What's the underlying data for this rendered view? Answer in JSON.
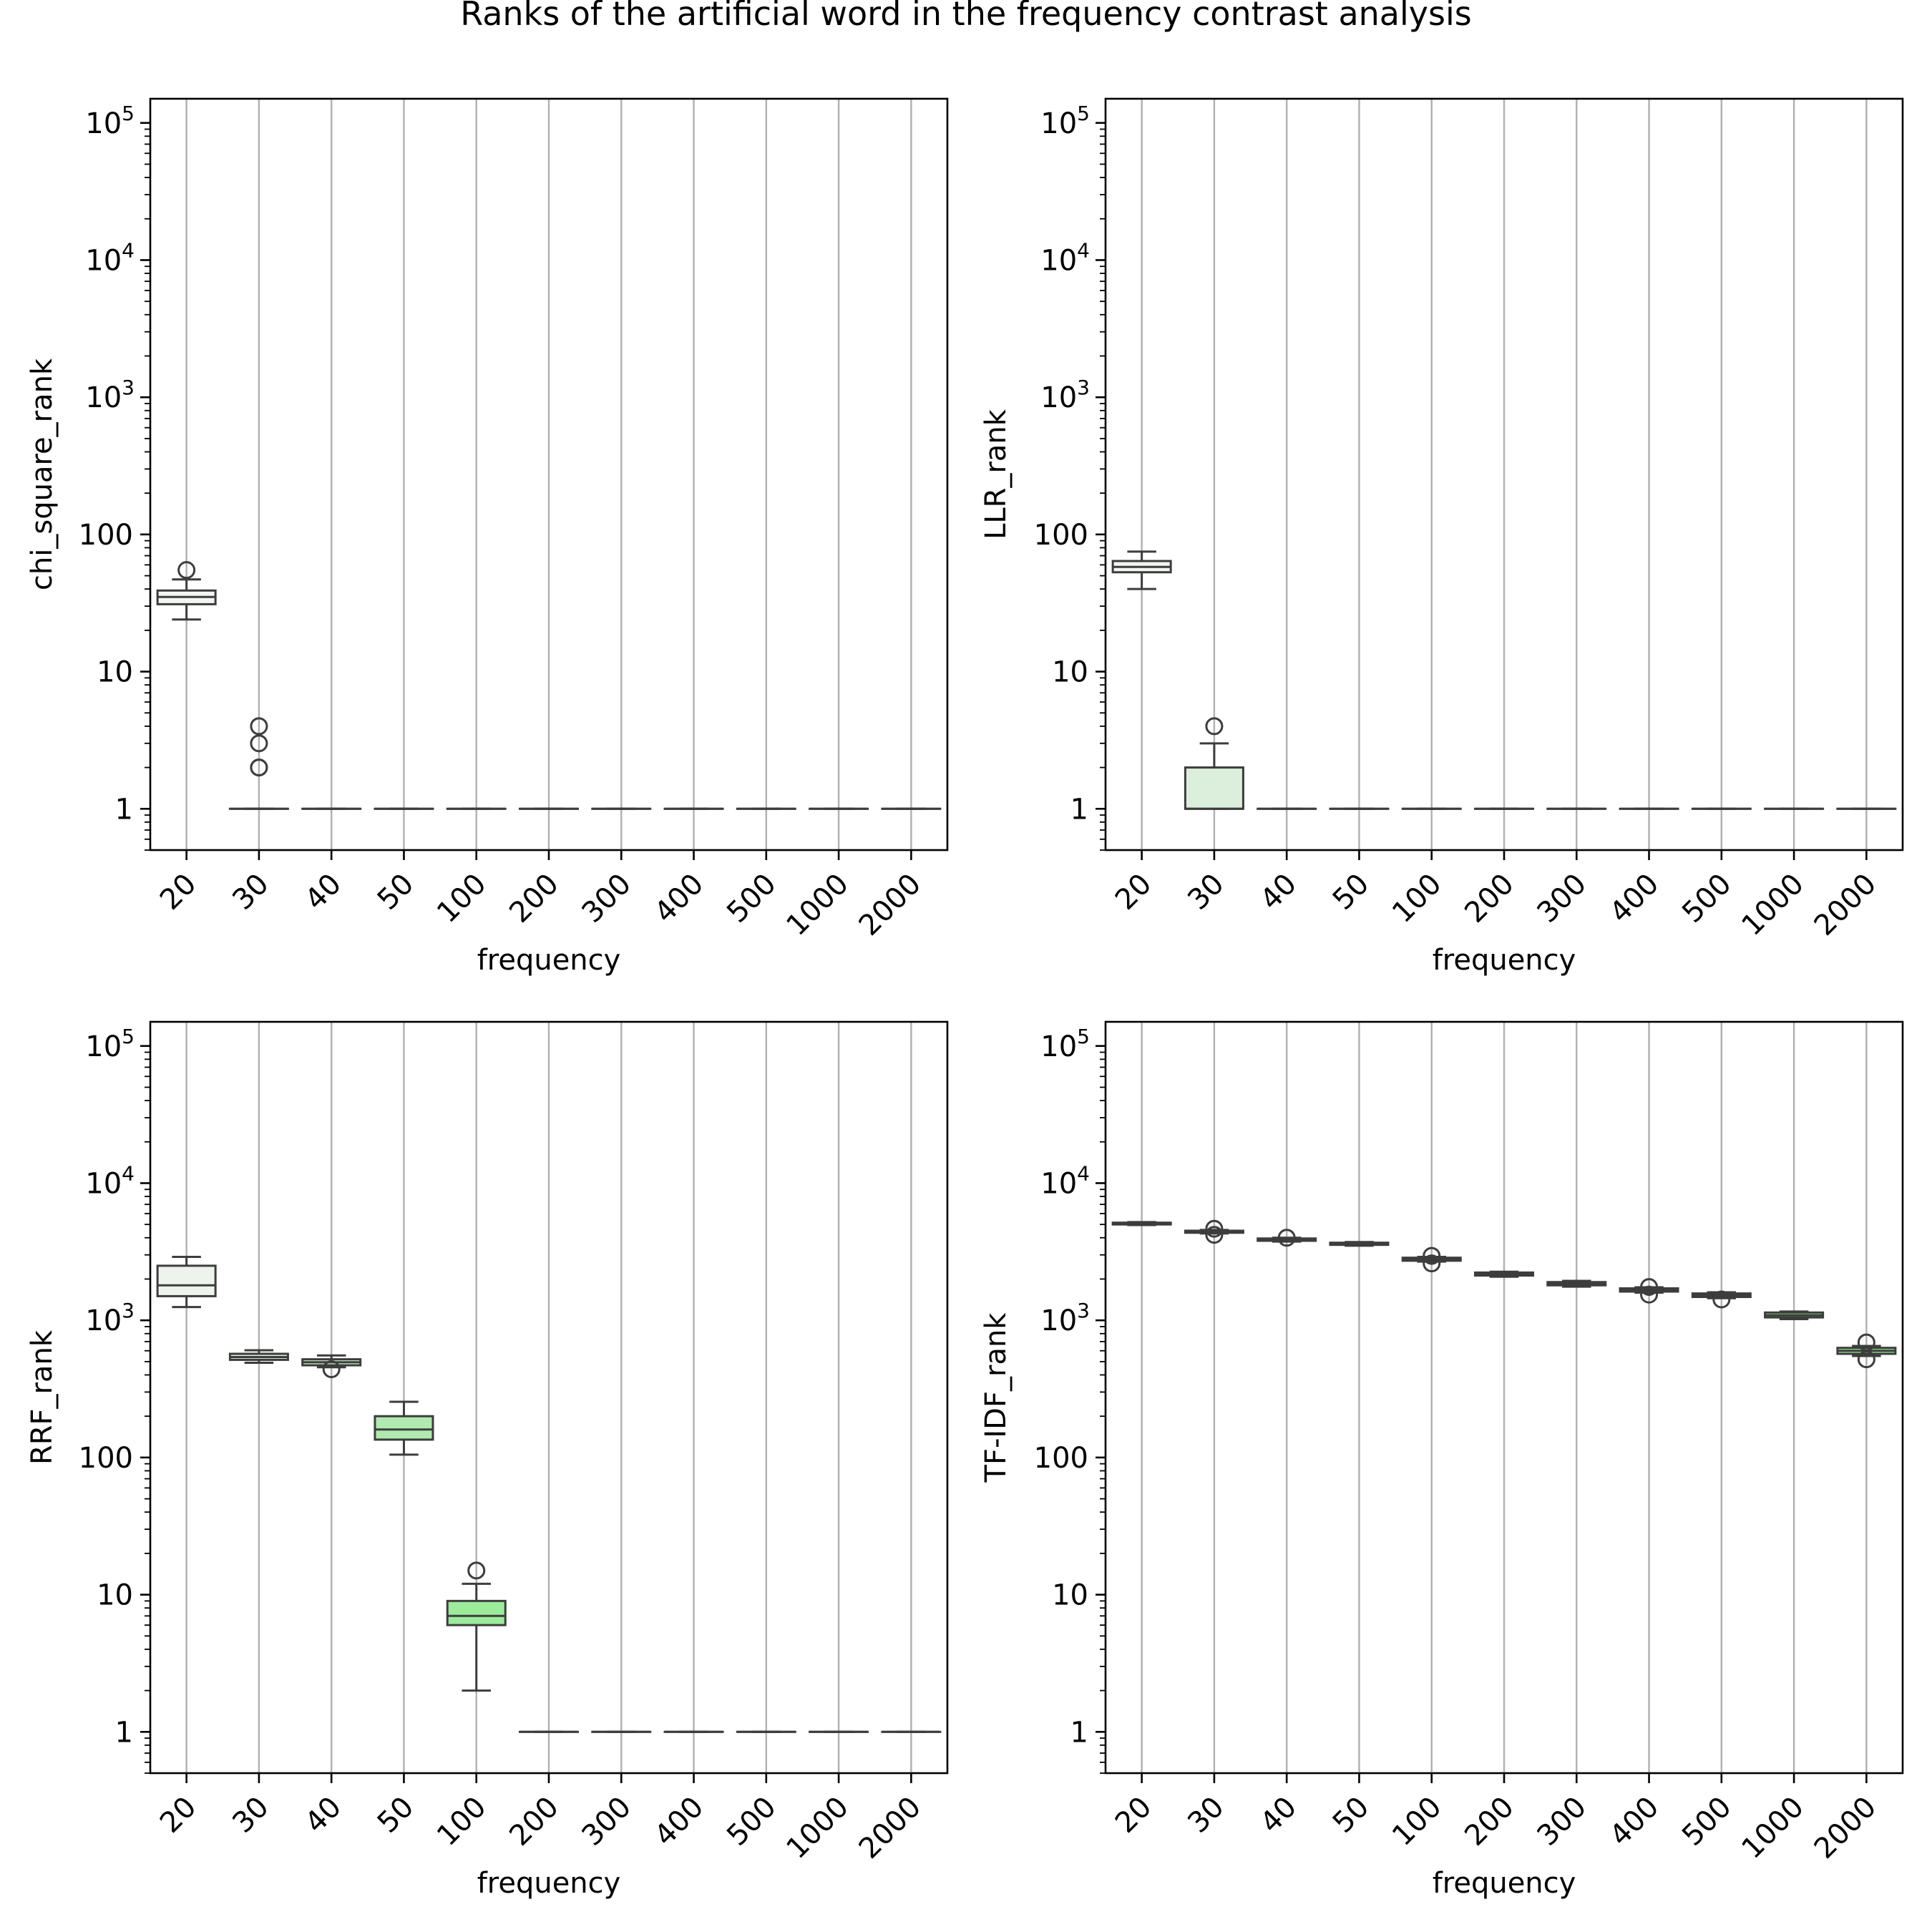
{
  "figure": {
    "title": "Ranks of the artificial word in the frequency contrast analysis"
  },
  "chart_data": [
    {
      "type": "box",
      "ylabel": "chi_square_rank",
      "xlabel": "frequency",
      "yscale": "log",
      "ylim": [
        0.5,
        150000
      ],
      "yticks": [
        {
          "v": 1,
          "label": "1"
        },
        {
          "v": 10,
          "label": "10"
        },
        {
          "v": 100,
          "label": "100"
        },
        {
          "v": 1000,
          "label": "10",
          "sup": "3"
        },
        {
          "v": 10000,
          "label": "10",
          "sup": "4"
        },
        {
          "v": 100000,
          "label": "10",
          "sup": "5"
        }
      ],
      "grid": "vertical",
      "categories": [
        "20",
        "30",
        "40",
        "50",
        "100",
        "200",
        "300",
        "400",
        "500",
        "1000",
        "2000"
      ],
      "boxes": [
        {
          "q1": 31,
          "median": 35,
          "q3": 39,
          "whislo": 24,
          "whishi": 47,
          "fliers": [
            55
          ],
          "color": "#f2f5f2"
        },
        {
          "q1": 1,
          "median": 1,
          "q3": 1,
          "whislo": 1,
          "whishi": 1,
          "fliers": [
            4,
            3,
            2,
            2
          ],
          "color": "#dcefdc"
        },
        {
          "q1": 1,
          "median": 1,
          "q3": 1,
          "whislo": 1,
          "whishi": 1,
          "fliers": [],
          "color": "#ccebcc"
        },
        {
          "q1": 1,
          "median": 1,
          "q3": 1,
          "whislo": 1,
          "whishi": 1,
          "fliers": [],
          "color": "#b8e8b8"
        },
        {
          "q1": 1,
          "median": 1,
          "q3": 1,
          "whislo": 1,
          "whishi": 1,
          "fliers": [],
          "color": "#a3e6a3"
        },
        {
          "q1": 1,
          "median": 1,
          "q3": 1,
          "whislo": 1,
          "whishi": 1,
          "fliers": [],
          "color": "#98e398"
        },
        {
          "q1": 1,
          "median": 1,
          "q3": 1,
          "whislo": 1,
          "whishi": 1,
          "fliers": [],
          "color": "#90ee90"
        },
        {
          "q1": 1,
          "median": 1,
          "q3": 1,
          "whislo": 1,
          "whishi": 1,
          "fliers": [],
          "color": "#90ee90"
        },
        {
          "q1": 1,
          "median": 1,
          "q3": 1,
          "whislo": 1,
          "whishi": 1,
          "fliers": [],
          "color": "#90ee90"
        },
        {
          "q1": 1,
          "median": 1,
          "q3": 1,
          "whislo": 1,
          "whishi": 1,
          "fliers": [],
          "color": "#90ee90"
        },
        {
          "q1": 1,
          "median": 1,
          "q3": 1,
          "whislo": 1,
          "whishi": 1,
          "fliers": [],
          "color": "#90ee90"
        }
      ]
    },
    {
      "type": "box",
      "ylabel": "LLR_rank",
      "xlabel": "frequency",
      "yscale": "log",
      "ylim": [
        0.5,
        150000
      ],
      "yticks": [
        {
          "v": 1,
          "label": "1"
        },
        {
          "v": 10,
          "label": "10"
        },
        {
          "v": 100,
          "label": "100"
        },
        {
          "v": 1000,
          "label": "10",
          "sup": "3"
        },
        {
          "v": 10000,
          "label": "10",
          "sup": "4"
        },
        {
          "v": 100000,
          "label": "10",
          "sup": "5"
        }
      ],
      "grid": "vertical",
      "categories": [
        "20",
        "30",
        "40",
        "50",
        "100",
        "200",
        "300",
        "400",
        "500",
        "1000",
        "2000"
      ],
      "boxes": [
        {
          "q1": 53,
          "median": 58,
          "q3": 64,
          "whislo": 40,
          "whishi": 75,
          "fliers": [],
          "color": "#f2f5f2"
        },
        {
          "q1": 1,
          "median": 1,
          "q3": 2,
          "whislo": 1,
          "whishi": 3,
          "fliers": [
            4
          ],
          "color": "#dcefdc"
        },
        {
          "q1": 1,
          "median": 1,
          "q3": 1,
          "whislo": 1,
          "whishi": 1,
          "fliers": [],
          "color": "#ccebcc"
        },
        {
          "q1": 1,
          "median": 1,
          "q3": 1,
          "whislo": 1,
          "whishi": 1,
          "fliers": [],
          "color": "#b8e8b8"
        },
        {
          "q1": 1,
          "median": 1,
          "q3": 1,
          "whislo": 1,
          "whishi": 1,
          "fliers": [],
          "color": "#a3e6a3"
        },
        {
          "q1": 1,
          "median": 1,
          "q3": 1,
          "whislo": 1,
          "whishi": 1,
          "fliers": [],
          "color": "#98e398"
        },
        {
          "q1": 1,
          "median": 1,
          "q3": 1,
          "whislo": 1,
          "whishi": 1,
          "fliers": [],
          "color": "#90ee90"
        },
        {
          "q1": 1,
          "median": 1,
          "q3": 1,
          "whislo": 1,
          "whishi": 1,
          "fliers": [],
          "color": "#90ee90"
        },
        {
          "q1": 1,
          "median": 1,
          "q3": 1,
          "whislo": 1,
          "whishi": 1,
          "fliers": [],
          "color": "#90ee90"
        },
        {
          "q1": 1,
          "median": 1,
          "q3": 1,
          "whislo": 1,
          "whishi": 1,
          "fliers": [],
          "color": "#90ee90"
        },
        {
          "q1": 1,
          "median": 1,
          "q3": 1,
          "whislo": 1,
          "whishi": 1,
          "fliers": [],
          "color": "#90ee90"
        }
      ]
    },
    {
      "type": "box",
      "ylabel": "RRF_rank",
      "xlabel": "frequency",
      "yscale": "log",
      "ylim": [
        0.5,
        150000
      ],
      "yticks": [
        {
          "v": 1,
          "label": "1"
        },
        {
          "v": 10,
          "label": "10"
        },
        {
          "v": 100,
          "label": "100"
        },
        {
          "v": 1000,
          "label": "10",
          "sup": "3"
        },
        {
          "v": 10000,
          "label": "10",
          "sup": "4"
        },
        {
          "v": 100000,
          "label": "10",
          "sup": "5"
        }
      ],
      "grid": "vertical",
      "categories": [
        "20",
        "30",
        "40",
        "50",
        "100",
        "200",
        "300",
        "400",
        "500",
        "1000",
        "2000"
      ],
      "boxes": [
        {
          "q1": 1500,
          "median": 1800,
          "q3": 2500,
          "whislo": 1250,
          "whishi": 2900,
          "fliers": [],
          "color": "#eef3ee"
        },
        {
          "q1": 515,
          "median": 540,
          "q3": 570,
          "whislo": 490,
          "whishi": 605,
          "fliers": [],
          "color": "#dcefdc"
        },
        {
          "q1": 470,
          "median": 495,
          "q3": 520,
          "whislo": 455,
          "whishi": 555,
          "fliers": [
            440
          ],
          "color": "#ccebcc"
        },
        {
          "q1": 135,
          "median": 160,
          "q3": 200,
          "whislo": 105,
          "whishi": 255,
          "fliers": [],
          "color": "#b0eab0"
        },
        {
          "q1": 6,
          "median": 7,
          "q3": 9,
          "whislo": 2,
          "whishi": 12,
          "fliers": [
            15
          ],
          "color": "#9beb9b"
        },
        {
          "q1": 1,
          "median": 1,
          "q3": 1,
          "whislo": 1,
          "whishi": 1,
          "fliers": [],
          "color": "#98e398"
        },
        {
          "q1": 1,
          "median": 1,
          "q3": 1,
          "whislo": 1,
          "whishi": 1,
          "fliers": [],
          "color": "#90ee90"
        },
        {
          "q1": 1,
          "median": 1,
          "q3": 1,
          "whislo": 1,
          "whishi": 1,
          "fliers": [],
          "color": "#90ee90"
        },
        {
          "q1": 1,
          "median": 1,
          "q3": 1,
          "whislo": 1,
          "whishi": 1,
          "fliers": [],
          "color": "#90ee90"
        },
        {
          "q1": 1,
          "median": 1,
          "q3": 1,
          "whislo": 1,
          "whishi": 1,
          "fliers": [],
          "color": "#90ee90"
        },
        {
          "q1": 1,
          "median": 1,
          "q3": 1,
          "whislo": 1,
          "whishi": 1,
          "fliers": [],
          "color": "#90ee90"
        }
      ]
    },
    {
      "type": "box",
      "ylabel": "TF-IDF_rank",
      "xlabel": "frequency",
      "yscale": "log",
      "ylim": [
        0.5,
        150000
      ],
      "yticks": [
        {
          "v": 1,
          "label": "1"
        },
        {
          "v": 10,
          "label": "10"
        },
        {
          "v": 100,
          "label": "100"
        },
        {
          "v": 1000,
          "label": "10",
          "sup": "3"
        },
        {
          "v": 10000,
          "label": "10",
          "sup": "4"
        },
        {
          "v": 100000,
          "label": "10",
          "sup": "5"
        }
      ],
      "grid": "vertical",
      "categories": [
        "20",
        "30",
        "40",
        "50",
        "100",
        "200",
        "300",
        "400",
        "500",
        "1000",
        "2000"
      ],
      "boxes": [
        {
          "q1": 5000,
          "median": 5080,
          "q3": 5150,
          "whislo": 4950,
          "whishi": 5200,
          "fliers": [],
          "color": "#f2f5f2"
        },
        {
          "q1": 4350,
          "median": 4420,
          "q3": 4500,
          "whislo": 4300,
          "whishi": 4560,
          "fliers": [
            4650,
            4200
          ],
          "color": "#e6f2e6"
        },
        {
          "q1": 3800,
          "median": 3870,
          "q3": 3950,
          "whislo": 3750,
          "whishi": 4000,
          "fliers": [
            4000
          ],
          "color": "#d9efd9"
        },
        {
          "q1": 3550,
          "median": 3610,
          "q3": 3680,
          "whislo": 3500,
          "whishi": 3720,
          "fliers": [],
          "color": "#c8ecc8"
        },
        {
          "q1": 2720,
          "median": 2790,
          "q3": 2860,
          "whislo": 2680,
          "whishi": 2900,
          "fliers": [
            2950,
            2600
          ],
          "color": "#b8e9b8"
        },
        {
          "q1": 2120,
          "median": 2170,
          "q3": 2230,
          "whislo": 2080,
          "whishi": 2260,
          "fliers": [],
          "color": "#abe8ab"
        },
        {
          "q1": 1800,
          "median": 1850,
          "q3": 1900,
          "whislo": 1760,
          "whishi": 1940,
          "fliers": [],
          "color": "#a0e8a0"
        },
        {
          "q1": 1620,
          "median": 1660,
          "q3": 1710,
          "whislo": 1590,
          "whishi": 1740,
          "fliers": [
            1750,
            1540
          ],
          "color": "#98e898"
        },
        {
          "q1": 1480,
          "median": 1520,
          "q3": 1570,
          "whislo": 1450,
          "whishi": 1600,
          "fliers": [
            1420
          ],
          "color": "#93ea93"
        },
        {
          "q1": 1050,
          "median": 1090,
          "q3": 1140,
          "whislo": 1020,
          "whishi": 1160,
          "fliers": [],
          "color": "#90ec90"
        },
        {
          "q1": 570,
          "median": 600,
          "q3": 630,
          "whislo": 550,
          "whishi": 650,
          "fliers": [
            690,
            520
          ],
          "color": "#90ee90"
        }
      ]
    }
  ]
}
